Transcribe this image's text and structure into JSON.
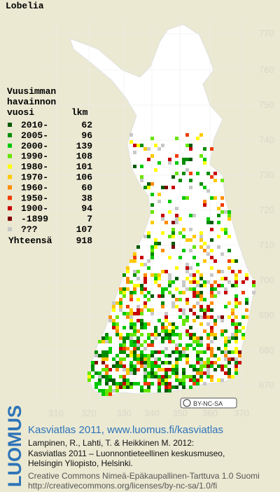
{
  "title": "Lobelia",
  "grid": {
    "north": [
      770,
      760,
      750,
      740,
      730,
      720,
      710,
      700,
      690,
      680,
      670
    ],
    "east": [
      310,
      320,
      330,
      340,
      350,
      360,
      370
    ]
  },
  "legend": {
    "heading": [
      "Vuusimman",
      "havainnon",
      "vuosi"
    ],
    "count_heading": "lkm",
    "rows": [
      {
        "label": "2010-",
        "count": 62,
        "color": "#005a00"
      },
      {
        "label": "2005-",
        "count": 96,
        "color": "#008c00"
      },
      {
        "label": "2000-",
        "count": 139,
        "color": "#00c800"
      },
      {
        "label": "1990-",
        "count": 108,
        "color": "#66e600"
      },
      {
        "label": "1980-",
        "count": 101,
        "color": "#ffff00"
      },
      {
        "label": "1970-",
        "count": 106,
        "color": "#ffc800"
      },
      {
        "label": "1960-",
        "count": 60,
        "color": "#ff8c00"
      },
      {
        "label": "1950-",
        "count": 38,
        "color": "#f03c00"
      },
      {
        "label": "1900-",
        "count": 94,
        "color": "#c80000"
      },
      {
        "label": "-1899",
        "count": 7,
        "color": "#800000"
      },
      {
        "label": "???",
        "count": 107,
        "color": "#c8c8c8"
      }
    ],
    "total_label": "Yhteensä",
    "total": 918
  },
  "license_badge": "BY-NC-SA",
  "footer": {
    "logo": "LUOMUS",
    "headline": "Kasviatlas 2011, www.luomus.fi/kasviatlas",
    "citation": [
      "Lampinen, R., Lahti, T. & Heikkinen M. 2012:",
      "Kasviatlas 2011 – Luonnontieteellinen keskusmuseo,",
      "Helsingin Yliopisto, Helsinki."
    ],
    "license": [
      "Creative Commons Nimeä-Epäkaupallinen-Tarttuva 1.0 Suomi",
      "http://creativecommons.org/licenses/by-nc-sa/1.0/fi"
    ]
  }
}
